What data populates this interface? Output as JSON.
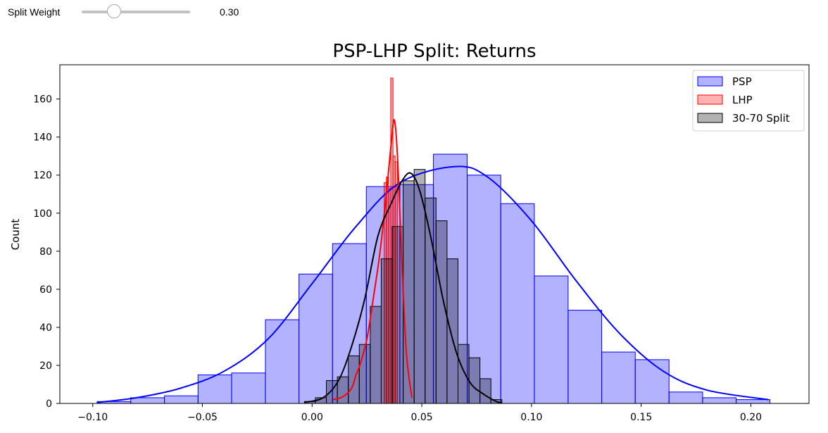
{
  "control": {
    "label": "Split Weight",
    "value": 0.3,
    "value_text": "0.30",
    "min": 0,
    "max": 1
  },
  "chart_data": {
    "type": "histogram",
    "title": "PSP-LHP Split: Returns",
    "xlabel": "",
    "ylabel": "Count",
    "xlim": [
      -0.115,
      0.2265
    ],
    "ylim": [
      0,
      178
    ],
    "xticks": [
      -0.1,
      -0.05,
      0.0,
      0.05,
      0.1,
      0.15,
      0.2
    ],
    "xtick_labels": [
      "−0.10",
      "−0.05",
      "0.00",
      "0.05",
      "0.10",
      "0.15",
      "0.20"
    ],
    "yticks": [
      0,
      20,
      40,
      60,
      80,
      100,
      120,
      140,
      160
    ],
    "ytick_labels": [
      "0",
      "20",
      "40",
      "60",
      "80",
      "100",
      "120",
      "140",
      "160"
    ],
    "grid": false,
    "legend_position": "top-right",
    "series": [
      {
        "name": "PSP",
        "color": "#0000ff",
        "fill_alpha": 0.3,
        "bin_edges": [
          -0.098,
          -0.0827,
          -0.0673,
          -0.052,
          -0.0367,
          -0.0213,
          -0.006,
          0.0093,
          0.0247,
          0.04,
          0.0553,
          0.0707,
          0.086,
          0.1013,
          0.1167,
          0.132,
          0.1473,
          0.1627,
          0.178,
          0.1933,
          0.2087
        ],
        "counts": [
          1,
          3,
          4,
          15,
          16,
          44,
          68,
          84,
          114,
          115,
          131,
          120,
          105,
          67,
          49,
          27,
          23,
          6,
          3,
          2
        ],
        "kde": {
          "x": [
            -0.098,
            -0.08,
            -0.06,
            -0.04,
            -0.02,
            0.0,
            0.02,
            0.04,
            0.065,
            0.08,
            0.1,
            0.12,
            0.14,
            0.16,
            0.18,
            0.208
          ],
          "y": [
            0.5,
            3,
            8,
            17,
            34,
            63,
            93,
            116,
            124.5,
            119,
            96,
            65,
            37,
            17,
            7,
            2
          ]
        }
      },
      {
        "name": "LHP",
        "color": "#ff0000",
        "fill_alpha": 0.3,
        "bin_edges": [
          0.03285,
          0.03385,
          0.03485,
          0.03585,
          0.03685,
          0.03785,
          0.03885
        ],
        "counts": [
          116,
          119,
          113,
          171,
          130,
          127
        ],
        "kde": {
          "x": [
            0.0095,
            0.014,
            0.018,
            0.02,
            0.022,
            0.025,
            0.028,
            0.031,
            0.034,
            0.036,
            0.0375,
            0.039,
            0.041,
            0.043,
            0.0455
          ],
          "y": [
            2,
            3.5,
            8,
            15,
            21,
            34,
            56,
            80,
            112,
            136,
            149,
            128,
            72,
            26,
            3
          ]
        }
      },
      {
        "name": "30-70 Split",
        "color": "#000000",
        "fill_alpha": 0.3,
        "bin_edges": [
          -0.0035,
          0.0015,
          0.0065,
          0.0115,
          0.0165,
          0.0215,
          0.0265,
          0.0315,
          0.0365,
          0.0415,
          0.0465,
          0.0515,
          0.0565,
          0.0615,
          0.0665,
          0.0715,
          0.0765,
          0.0815,
          0.0865
        ],
        "counts": [
          1,
          3,
          12,
          14,
          25,
          31,
          51,
          76,
          93,
          117,
          123,
          108,
          96,
          76,
          31,
          24,
          13,
          2
        ],
        "kde": {
          "x": [
            -0.0035,
            0.005,
            0.012,
            0.018,
            0.024,
            0.03,
            0.036,
            0.041,
            0.045,
            0.049,
            0.054,
            0.06,
            0.066,
            0.072,
            0.078,
            0.084,
            0.0865
          ],
          "y": [
            0.5,
            3,
            12,
            30,
            55,
            88,
            105,
            117,
            121,
            112,
            88,
            53,
            26,
            11,
            5,
            1,
            0.5
          ]
        }
      }
    ]
  }
}
